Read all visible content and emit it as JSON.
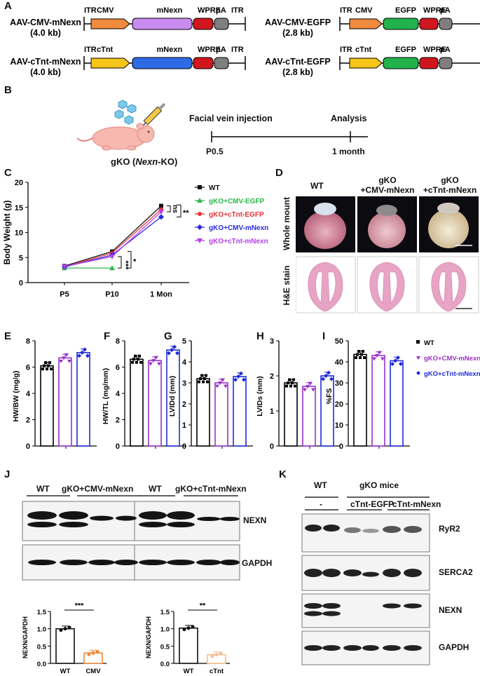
{
  "panels": {
    "A": "A",
    "B": "B",
    "C": "C",
    "D": "D",
    "E": "E",
    "F": "F",
    "G": "G",
    "H": "H",
    "I": "I",
    "J": "J",
    "K": "K"
  },
  "panelA": {
    "constructs": [
      {
        "name": "AAV-CMV-mNexn",
        "size": "(4.0 kb)",
        "elements": [
          {
            "label": "ITR",
            "kind": "itr"
          },
          {
            "label": "CMV",
            "kind": "promoter",
            "color": "#F08A3C"
          },
          {
            "label": "mNexn",
            "kind": "gene",
            "color": "#C98BF0"
          },
          {
            "label": "WPRE",
            "kind": "wpre",
            "color": "#D0161E"
          },
          {
            "label": "pA",
            "kind": "pa",
            "color": "#7F7F7F"
          },
          {
            "label": "ITR",
            "kind": "itr"
          }
        ]
      },
      {
        "name": "AAV-cTnt-mNexn",
        "size": "(4.0 kb)",
        "elements": [
          {
            "label": "ITR",
            "kind": "itr"
          },
          {
            "label": "cTnt",
            "kind": "promoter",
            "color": "#F5C518"
          },
          {
            "label": "mNexn",
            "kind": "gene",
            "color": "#2D6BE6"
          },
          {
            "label": "WPRE",
            "kind": "wpre",
            "color": "#D0161E"
          },
          {
            "label": "pA",
            "kind": "pa",
            "color": "#7F7F7F"
          },
          {
            "label": "ITR",
            "kind": "itr"
          }
        ]
      },
      {
        "name": "AAV-CMV-EGFP",
        "size": "(2.8 kb)",
        "elements": [
          {
            "label": "ITR",
            "kind": "itr"
          },
          {
            "label": "CMV",
            "kind": "promoter",
            "color": "#F08A3C"
          },
          {
            "label": "EGFP",
            "kind": "gene",
            "color": "#22B24C"
          },
          {
            "label": "WPRE",
            "kind": "wpre",
            "color": "#D0161E"
          },
          {
            "label": "pA",
            "kind": "pa",
            "color": "#7F7F7F"
          },
          {
            "label": "ITR",
            "kind": "itr"
          }
        ]
      },
      {
        "name": "AAV-cTnt-EGFP",
        "size": "(2.8 kb)",
        "elements": [
          {
            "label": "ITR",
            "kind": "itr"
          },
          {
            "label": "cTnt",
            "kind": "promoter",
            "color": "#F5C518"
          },
          {
            "label": "EGFP",
            "kind": "gene",
            "color": "#22B24C"
          },
          {
            "label": "WPRE",
            "kind": "wpre",
            "color": "#D0161E"
          },
          {
            "label": "pA",
            "kind": "pa",
            "color": "#7F7F7F"
          },
          {
            "label": "ITR",
            "kind": "itr"
          }
        ]
      }
    ]
  },
  "panelB": {
    "mouse_label_pre": "gKO (",
    "mouse_label_italic": "Nexn",
    "mouse_label_post": "-KO)",
    "injection_label": "Facial vein injection",
    "analysis_label": "Analysis",
    "start_tick": "P0.5",
    "end_tick": "1 month"
  },
  "panelC": {
    "chart_data": {
      "type": "line",
      "ylabel": "Body Weight (g)",
      "xlabel": "",
      "categories": [
        "P5",
        "P10",
        "1 Mon"
      ],
      "ylim": [
        0,
        20
      ],
      "yticks": [
        0,
        5,
        10,
        15,
        20
      ],
      "legend_position": "right",
      "series": [
        {
          "name": "WT",
          "color": "#111111",
          "marker": "square",
          "values": [
            3.3,
            6.2,
            15.3
          ]
        },
        {
          "name": "gKO+CMV-EGFP",
          "color": "#2DB84A",
          "marker": "triangle",
          "values": [
            2.9,
            2.9,
            null
          ]
        },
        {
          "name": "gKO+cTnt-EGFP",
          "color": "#E8333A",
          "marker": "circle",
          "values": [
            3.1,
            5.9,
            14.6
          ]
        },
        {
          "name": "gKO+CMV-mNexn",
          "color": "#2A2AE0",
          "marker": "diamond",
          "values": [
            3.1,
            5.5,
            13.1
          ]
        },
        {
          "name": "gKO+cTnt-mNexn",
          "color": "#B340E8",
          "marker": "triangle-down",
          "values": [
            3.2,
            5.2,
            14.1
          ]
        }
      ],
      "annotations": [
        {
          "text": "ns",
          "where": "1 Mon bracket"
        },
        {
          "text": "**",
          "where": "1 Mon bracket outer"
        },
        {
          "text": "***",
          "where": "P10 bracket"
        },
        {
          "text": "*",
          "where": "P10 bracket outer"
        }
      ]
    }
  },
  "panelD": {
    "columns": [
      "WT",
      "gKO\n+CMV-mNexn",
      "gKO\n+cTnt-mNexn"
    ],
    "col1": "WT",
    "col2a": "gKO",
    "col2b": "+CMV-mNexn",
    "col3a": "gKO",
    "col3b": "+cTnt-mNexn",
    "row1": "Whole mount",
    "row2": "H&E stain"
  },
  "bar_panels": {
    "chart_data": [
      {
        "type": "bar",
        "panel": "E",
        "ylabel": "HW/BW (mg/g)",
        "ylim": [
          0,
          8
        ],
        "yticks": [
          0,
          2,
          4,
          6,
          8
        ],
        "groups": [
          "WT",
          "gKO+CMV-mNexn",
          "gKO+cTnt-mNexn"
        ],
        "values": [
          6.1,
          6.7,
          7.1
        ]
      },
      {
        "type": "bar",
        "panel": "F",
        "ylabel": "HW/TL (mg/mm)",
        "ylim": [
          0,
          8
        ],
        "yticks": [
          0,
          2,
          4,
          6,
          8
        ],
        "groups": [
          "WT",
          "gKO+CMV-mNexn",
          "gKO+cTnt-mNexn"
        ],
        "values": [
          6.6,
          6.5,
          7.3
        ]
      },
      {
        "type": "bar",
        "panel": "G",
        "ylabel": "LVIDd (mm)",
        "ylim": [
          0,
          5
        ],
        "yticks": [
          0,
          1,
          2,
          3,
          4,
          5
        ],
        "groups": [
          "WT",
          "gKO+CMV-mNexn",
          "gKO+cTnt-mNexn"
        ],
        "values": [
          3.2,
          3.0,
          3.3
        ]
      },
      {
        "type": "bar",
        "panel": "H",
        "ylabel": "LVIDs (mm)",
        "ylim": [
          0,
          3
        ],
        "yticks": [
          0,
          1,
          2,
          3
        ],
        "groups": [
          "WT",
          "gKO+CMV-mNexn",
          "gKO+cTnt-mNexn"
        ],
        "values": [
          1.8,
          1.7,
          2.0
        ]
      },
      {
        "type": "bar",
        "panel": "I",
        "ylabel": "%FS",
        "ylim": [
          0,
          50
        ],
        "yticks": [
          0,
          10,
          20,
          30,
          40,
          50
        ],
        "groups": [
          "WT",
          "gKO+CMV-mNexn",
          "gKO+cTnt-mNexn"
        ],
        "values": [
          43.5,
          43.0,
          40.5
        ]
      }
    ],
    "colors": [
      "#000000",
      "#9B30C8",
      "#1F2BD8"
    ],
    "legend": [
      "WT",
      "gKO+CMV-mNexn",
      "gKO+cTnt-mNexn"
    ]
  },
  "panelJ": {
    "blot1_header": [
      "WT",
      "gKO+CMV-mNexn"
    ],
    "blot2_header": [
      "WT",
      "gKO+cTnt-mNexn"
    ],
    "band_labels": [
      "NEXN",
      "GAPDH"
    ],
    "chart_data": [
      {
        "type": "bar",
        "ylabel": "NEXN/GAPDH",
        "categories": [
          "WT",
          "CMV"
        ],
        "values": [
          1.0,
          0.3
        ],
        "ylim": [
          0,
          1.5
        ],
        "yticks": [
          "0.0",
          "0.5",
          "1.0",
          "1.5"
        ],
        "colors": [
          "#111111",
          "#F08A3C"
        ],
        "significance": "***"
      },
      {
        "type": "bar",
        "ylabel": "NEXN/GAPDH",
        "categories": [
          "WT",
          "cTnt"
        ],
        "values": [
          1.02,
          0.25
        ],
        "ylim": [
          0,
          1.5
        ],
        "yticks": [
          "0.0",
          "0.5",
          "1.0",
          "1.5"
        ],
        "colors": [
          "#111111",
          "#F5C08A"
        ],
        "significance": "**"
      }
    ]
  },
  "panelK": {
    "header_wt": "WT",
    "header_gko": "gKO mice",
    "sub_minus": "-",
    "sub_egfp": "cTnt-EGFP",
    "sub_mnexn": "cTnt-mNexn",
    "band_labels": [
      "RyR2",
      "SERCA2",
      "NEXN",
      "GAPDH"
    ]
  }
}
